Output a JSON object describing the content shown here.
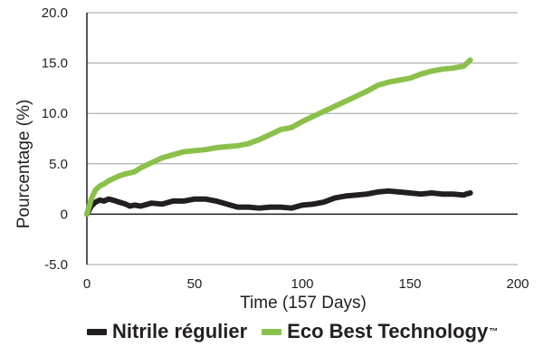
{
  "chart_data": {
    "type": "line",
    "title": "",
    "xlabel": "Time (157 Days)",
    "ylabel": "Pourcentage (%)",
    "xlim": [
      0,
      200
    ],
    "ylim": [
      -5,
      20
    ],
    "x_ticks": [
      "0",
      "50",
      "100",
      "150",
      "200"
    ],
    "y_ticks": [
      "-5.0",
      "0",
      "5.0",
      "10.0",
      "15.0",
      "20.0"
    ],
    "grid": "horizontal",
    "legend_position": "bottom",
    "series": [
      {
        "name": "Nitrile régulier",
        "color": "#231f20",
        "x": [
          0,
          2,
          4,
          6,
          8,
          10,
          12,
          15,
          18,
          20,
          22,
          25,
          30,
          35,
          40,
          45,
          50,
          55,
          60,
          65,
          70,
          75,
          80,
          85,
          90,
          95,
          100,
          105,
          110,
          115,
          120,
          125,
          130,
          135,
          140,
          145,
          150,
          155,
          160,
          165,
          170,
          175,
          176,
          178
        ],
        "values": [
          0.0,
          0.8,
          1.2,
          1.4,
          1.3,
          1.5,
          1.4,
          1.2,
          1.0,
          0.8,
          0.9,
          0.8,
          1.1,
          1.0,
          1.3,
          1.3,
          1.5,
          1.5,
          1.3,
          1.0,
          0.7,
          0.7,
          0.6,
          0.7,
          0.7,
          0.6,
          0.9,
          1.0,
          1.2,
          1.6,
          1.8,
          1.9,
          2.0,
          2.2,
          2.3,
          2.2,
          2.1,
          2.0,
          2.1,
          2.0,
          2.0,
          1.9,
          2.0,
          2.1
        ]
      },
      {
        "name": "Eco Best Technology",
        "color": "#8bc14b",
        "x": [
          0,
          2,
          4,
          6,
          8,
          10,
          12,
          15,
          18,
          20,
          22,
          25,
          30,
          35,
          40,
          45,
          50,
          55,
          60,
          65,
          70,
          75,
          80,
          85,
          90,
          95,
          100,
          105,
          110,
          115,
          120,
          125,
          130,
          135,
          140,
          145,
          150,
          155,
          160,
          165,
          170,
          175,
          176,
          178
        ],
        "values": [
          0.0,
          1.5,
          2.4,
          2.8,
          3.0,
          3.3,
          3.5,
          3.8,
          4.0,
          4.1,
          4.2,
          4.6,
          5.1,
          5.6,
          5.9,
          6.2,
          6.3,
          6.4,
          6.6,
          6.7,
          6.8,
          7.0,
          7.4,
          7.9,
          8.4,
          8.6,
          9.2,
          9.7,
          10.2,
          10.7,
          11.2,
          11.7,
          12.2,
          12.8,
          13.1,
          13.3,
          13.5,
          13.9,
          14.2,
          14.4,
          14.5,
          14.7,
          14.9,
          15.3
        ]
      }
    ]
  },
  "legend": {
    "items": [
      {
        "label": "Nitrile régulier",
        "color": "#231f20"
      },
      {
        "label": "Eco Best Technology",
        "color": "#8bc14b"
      }
    ],
    "trademark": "™"
  }
}
